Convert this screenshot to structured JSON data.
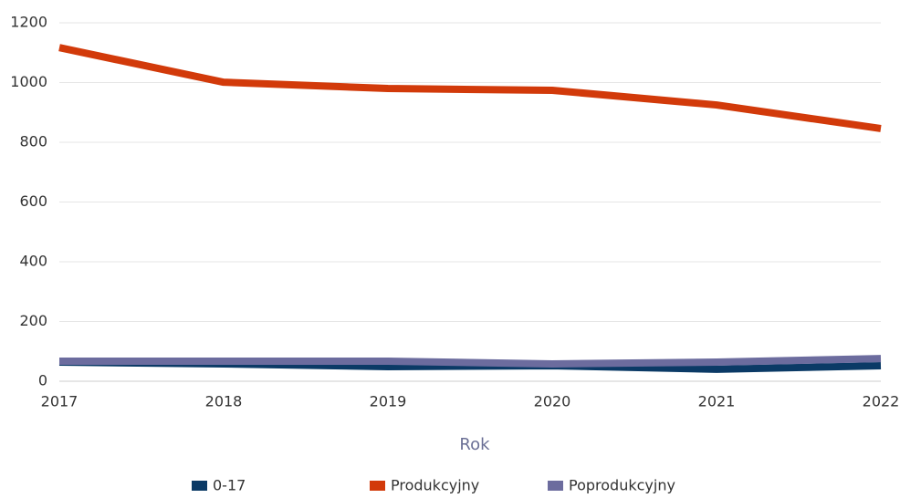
{
  "chart_data": {
    "type": "line",
    "x": [
      2017,
      2018,
      2019,
      2020,
      2021,
      2022
    ],
    "xlim": [
      2017,
      2022
    ],
    "xticks": [
      2017,
      2018,
      2019,
      2020,
      2021,
      2022
    ],
    "xlabel": "Rok",
    "ylim": [
      0,
      1200
    ],
    "yticks": [
      0,
      200,
      400,
      600,
      800,
      1000,
      1200
    ],
    "grid": true,
    "legend": "bottom",
    "series": [
      {
        "name": "0-17",
        "color": "#0b3a66",
        "values": [
          64,
          58,
          49,
          52,
          40,
          52
        ]
      },
      {
        "name": "Produkcyjny",
        "color": "#d23a0a",
        "values": [
          1117,
          1001,
          980,
          974,
          925,
          846
        ]
      },
      {
        "name": "Poprodukcyjny",
        "color": "#6c6c9e",
        "values": [
          67,
          67,
          67,
          58,
          64,
          76
        ]
      }
    ]
  }
}
